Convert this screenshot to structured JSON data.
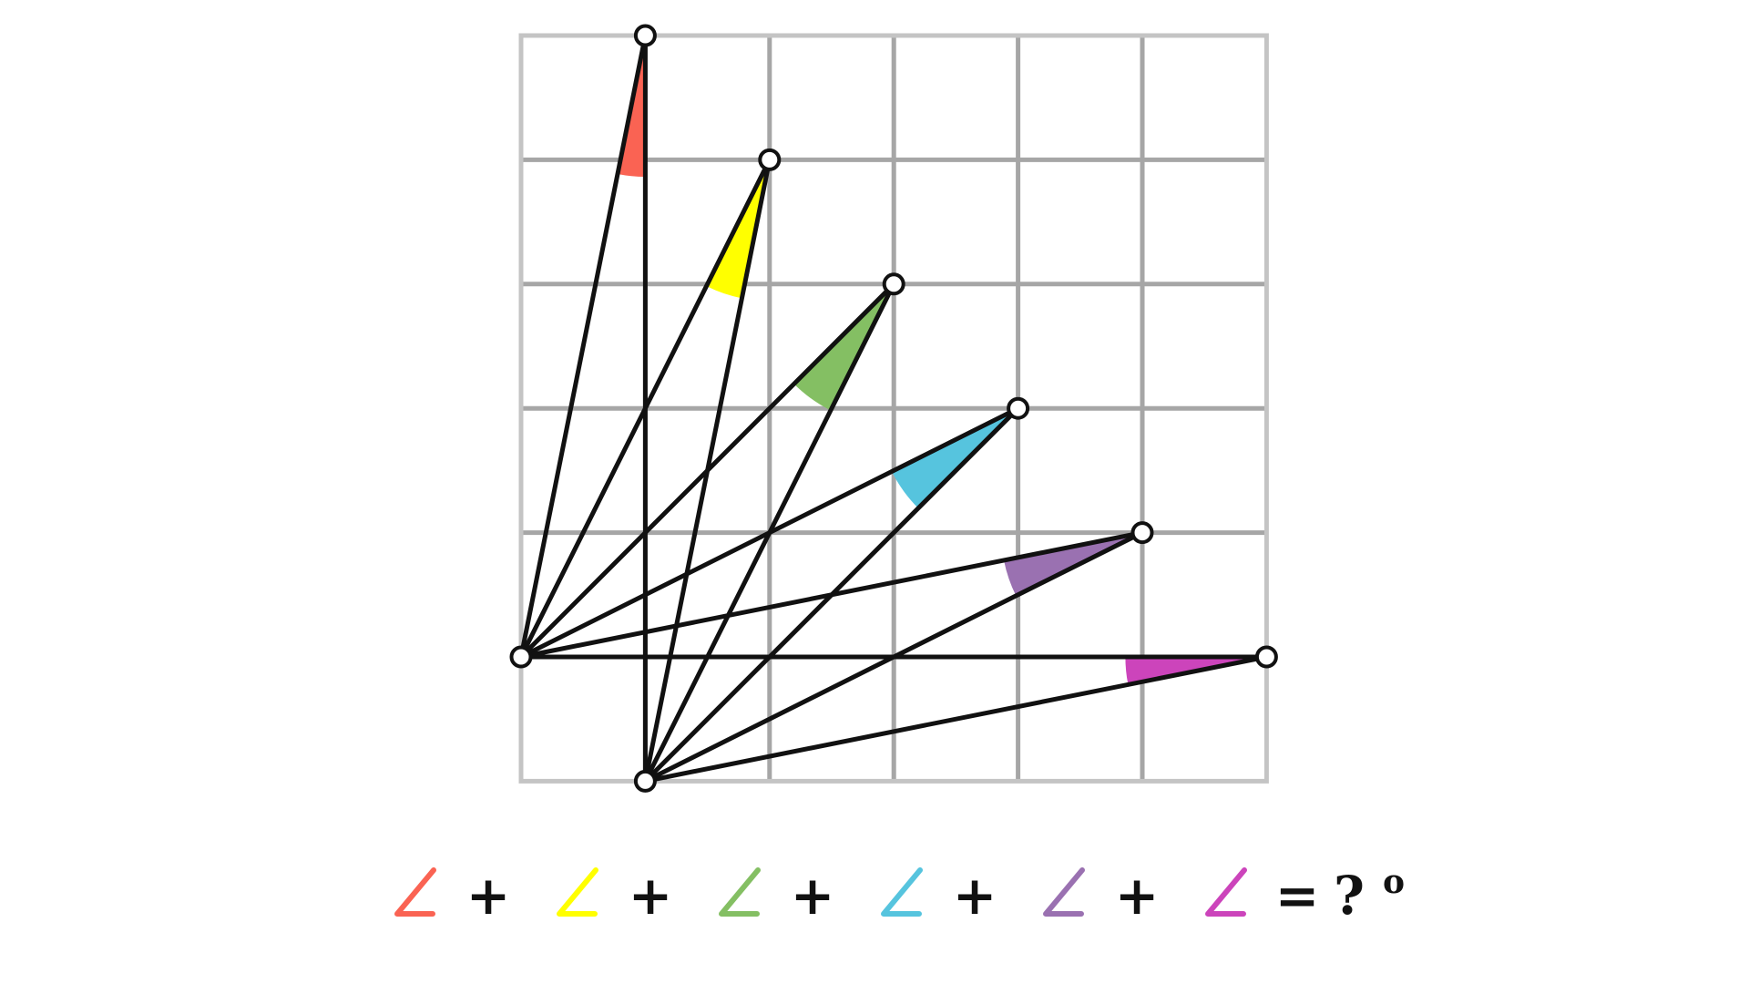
{
  "grid": {
    "columns": 6,
    "rows": 6,
    "outer_color": "#c4c4c4",
    "inner_color": "#a6a6a6",
    "line_color": "#111111",
    "point_fill": "#ffffff",
    "point_stroke": "#111111"
  },
  "angles": [
    {
      "color": "#fa6353",
      "icon": "angle-icon"
    },
    {
      "color": "#ffff00",
      "icon": "angle-icon"
    },
    {
      "color": "#84bf63",
      "icon": "angle-icon"
    },
    {
      "color": "#56c4de",
      "icon": "angle-icon"
    },
    {
      "color": "#9a71b1",
      "icon": "angle-icon"
    },
    {
      "color": "#cc44bb",
      "icon": "angle-icon"
    }
  ],
  "equation": {
    "plus": "+",
    "equals": "=",
    "unknown": "?",
    "degree": "o"
  }
}
